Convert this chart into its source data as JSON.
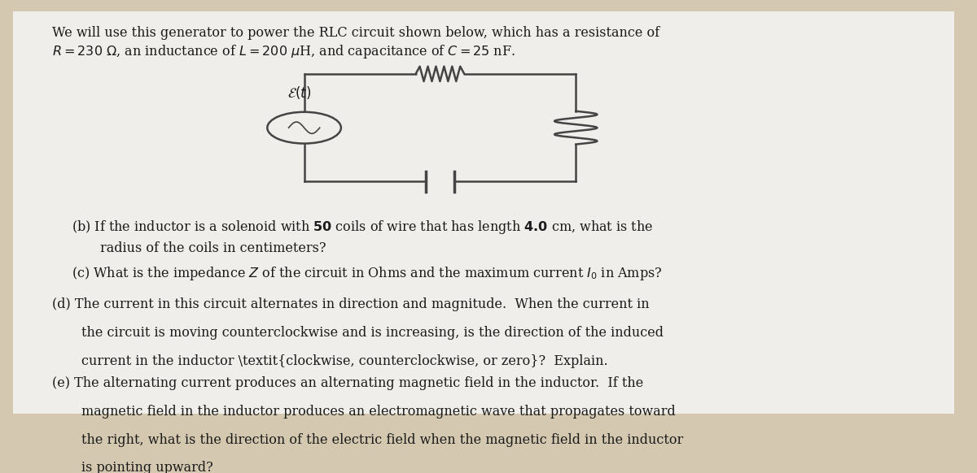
{
  "bg_color": "#d4c9b0",
  "paper_color": "#f0eeea",
  "title_line1": "We will use this generator to power the RLC circuit shown below, which has a resistance of",
  "title_line2": "R = 230 Ω, an inductance of L = 200 μH, and capacitance of C = 25 nF.",
  "part_b": "(b) If the inductor is a solenoid with 50 coils of wire that has length 4.0 cm, what is the\n     radius of the coils in centimeters?",
  "part_c": "(c) What is the impedance Z of the circuit in Ohms and the maximum current I₀ in Amps?",
  "part_d_line1": "(d) The current in this circuit alternates in direction and magnitude.  When the current in",
  "part_d_line2": "     the circuit is moving counterclockwise and is increasing, is the direction of the induced",
  "part_d_line3": "     current in the inductor clockwise, counterclockwise, or zero?  Explain.",
  "part_e_line1": "(e) The alternating current produces an alternating magnetic field in the inductor.  If the",
  "part_e_line2": "     magnetic field in the inductor produces an electromagnetic wave that propagates toward",
  "part_e_line3": "     the right, what is the direction of the electric field when the magnetic field in the inductor",
  "part_e_line4": "     is pointing upward?",
  "text_color": "#1a1a1a",
  "font_size": 11.5
}
